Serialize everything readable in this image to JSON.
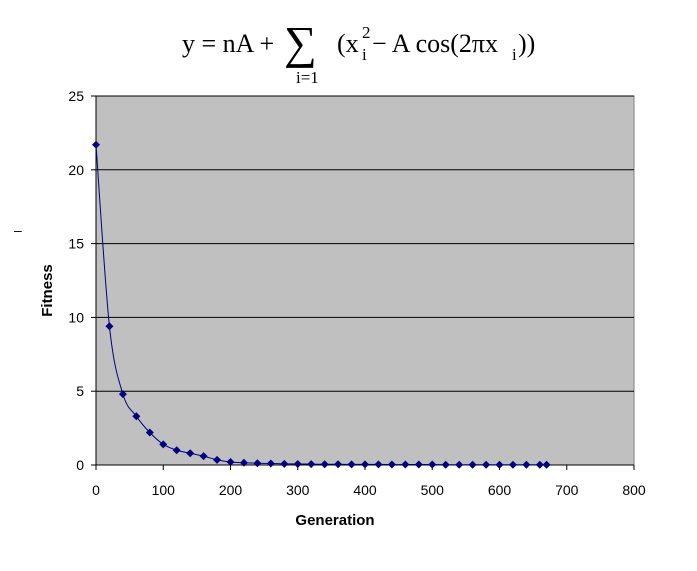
{
  "formula": {
    "lhs": "y = nA + ",
    "sum_symbol": "∑",
    "sum_lower": "i=1",
    "rhs": "(x",
    "rhs_sub": "i",
    "rhs_sup": "2",
    "rhs_tail": " − A cos(2πx",
    "rhs_tail_sub": "i",
    "rhs_close": "))"
  },
  "side_mark": "–",
  "chart_data": {
    "type": "line",
    "title": "",
    "xlabel": "Generation",
    "ylabel": "Fitness",
    "xlim": [
      0,
      800
    ],
    "ylim": [
      0,
      25
    ],
    "xticks": [
      0,
      100,
      200,
      300,
      400,
      500,
      600,
      700,
      800
    ],
    "yticks": [
      0,
      5,
      10,
      15,
      20,
      25
    ],
    "grid": {
      "horizontal": true,
      "vertical": false
    },
    "plot_background": "#c0c0c0",
    "series_color": "#000080",
    "series": [
      {
        "x": [
          0,
          20,
          40,
          60,
          80,
          100,
          120,
          140,
          160,
          180,
          200,
          220,
          240,
          260,
          280,
          300,
          320,
          340,
          360,
          380,
          400,
          420,
          440,
          460,
          480,
          500,
          520,
          540,
          560,
          580,
          600,
          620,
          640,
          660,
          670
        ],
        "values": [
          21.7,
          9.4,
          4.8,
          3.3,
          2.2,
          1.4,
          1.0,
          0.8,
          0.6,
          0.35,
          0.2,
          0.15,
          0.12,
          0.1,
          0.08,
          0.07,
          0.06,
          0.05,
          0.05,
          0.04,
          0.04,
          0.04,
          0.03,
          0.03,
          0.03,
          0.03,
          0.02,
          0.02,
          0.02,
          0.02,
          0.02,
          0.02,
          0.02,
          0.02,
          0.02
        ]
      }
    ]
  }
}
